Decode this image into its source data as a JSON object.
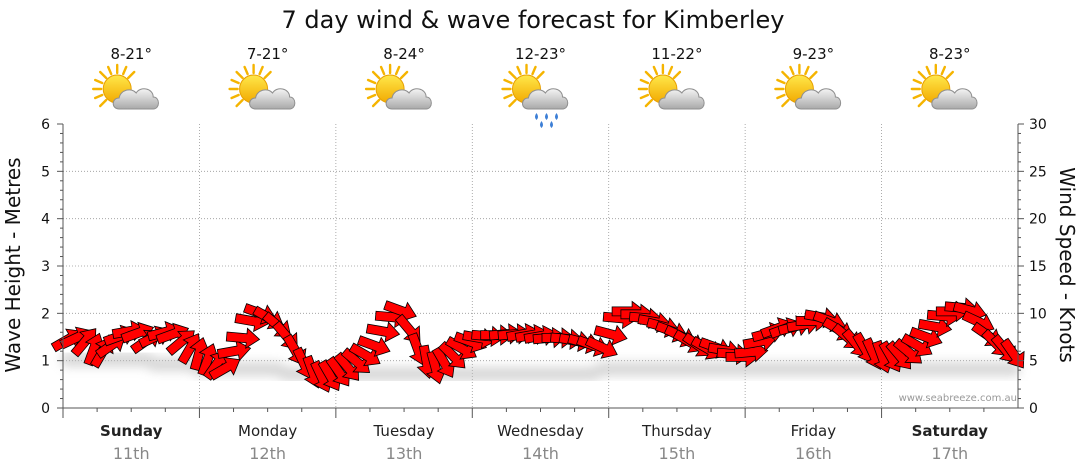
{
  "chart_data": {
    "type": "line",
    "title": "7 day wind & wave forecast for Kimberley",
    "ylabel_left": "Wave Height - Metres",
    "ylabel_right": "Wind Speed - Knots",
    "ylim_left": [
      0,
      6
    ],
    "ylim_right": [
      0,
      30
    ],
    "yticks_left": [
      "0",
      "1",
      "2",
      "3",
      "4",
      "5",
      "6"
    ],
    "yticks_right": [
      "0",
      "5",
      "10",
      "15",
      "20",
      "25",
      "30"
    ],
    "credit": "www.seabreeze.com.au",
    "days": [
      {
        "name": "Sunday",
        "date": "11th",
        "temp": "8-21°",
        "icon": "sun-cloud-icon",
        "bold": true
      },
      {
        "name": "Monday",
        "date": "12th",
        "temp": "7-21°",
        "icon": "sun-cloud-icon",
        "bold": false
      },
      {
        "name": "Tuesday",
        "date": "13th",
        "temp": "8-24°",
        "icon": "sun-cloud-icon",
        "bold": false
      },
      {
        "name": "Wednesday",
        "date": "14th",
        "temp": "12-23°",
        "icon": "sun-cloud-rain-icon",
        "bold": false
      },
      {
        "name": "Thursday",
        "date": "15th",
        "temp": "11-22°",
        "icon": "sun-cloud-icon",
        "bold": false
      },
      {
        "name": "Friday",
        "date": "16th",
        "temp": "9-23°",
        "icon": "sun-cloud-icon",
        "bold": false
      },
      {
        "name": "Saturday",
        "date": "17th",
        "temp": "8-23°",
        "icon": "sun-cloud-icon",
        "bold": true
      }
    ],
    "series": [
      {
        "name": "Wind Speed (knots)",
        "color": "#ff0000",
        "values": [
          7.2,
          7.4,
          7.0,
          6.2,
          5.9,
          6.6,
          7.6,
          8.1,
          7.9,
          7.1,
          7.5,
          8.0,
          7.8,
          7.0,
          6.3,
          5.7,
          5.1,
          4.6,
          4.2,
          6.0,
          7.4,
          9.2,
          10.0,
          9.5,
          8.7,
          7.6,
          6.1,
          4.7,
          3.8,
          3.3,
          3.4,
          3.8,
          4.3,
          4.9,
          5.6,
          6.6,
          8.1,
          9.6,
          10.3,
          8.3,
          6.2,
          4.9,
          4.3,
          4.8,
          5.5,
          6.3,
          7.0,
          7.4,
          7.6,
          7.7,
          7.8,
          7.8,
          7.8,
          7.7,
          7.6,
          7.4,
          7.4,
          7.3,
          7.1,
          6.9,
          6.6,
          6.4,
          7.8,
          9.5,
          10.2,
          9.9,
          9.5,
          9.1,
          8.6,
          8.1,
          7.6,
          7.0,
          6.6,
          6.3,
          6.4,
          6.1,
          5.7,
          5.4,
          5.9,
          7.0,
          7.9,
          8.4,
          8.4,
          8.6,
          8.8,
          9.2,
          9.6,
          9.2,
          8.3,
          7.5,
          6.8,
          6.3,
          5.7,
          5.4,
          5.4,
          5.5,
          5.9,
          6.6,
          7.5,
          8.6,
          9.7,
          10.2,
          10.6,
          10.3,
          9.1,
          7.7,
          6.8,
          6.2,
          5.7
        ]
      },
      {
        "name": "Wave Height (m)",
        "color": "#bbbbbb",
        "values": [
          1.0,
          1.0,
          1.0,
          1.0,
          1.0,
          1.0,
          1.0,
          1.0,
          1.0,
          1.0,
          0.9,
          0.9,
          0.9,
          0.9,
          0.9,
          0.8,
          0.8,
          0.8,
          0.8,
          0.8,
          0.8,
          0.8,
          0.8,
          0.8,
          0.8,
          0.7,
          0.7,
          0.7,
          0.7,
          0.7,
          0.7,
          0.7,
          0.7,
          0.7,
          0.7,
          0.7,
          0.7,
          0.7,
          0.7,
          0.7,
          0.7,
          0.7,
          0.7,
          0.7,
          0.7,
          0.7,
          0.7,
          0.7,
          0.7,
          0.7,
          0.7,
          0.7,
          0.7,
          0.7,
          0.7,
          0.7,
          0.7,
          0.7,
          0.7,
          0.7,
          0.7,
          0.8,
          0.8,
          0.8,
          0.8,
          0.8,
          0.8,
          0.8,
          0.8,
          0.8,
          0.8,
          0.8,
          0.8,
          0.8,
          0.8,
          0.8,
          0.8,
          0.8,
          0.8,
          0.8,
          0.8,
          0.8,
          0.8,
          0.8,
          0.8,
          0.8,
          0.8,
          0.8,
          0.8,
          0.8,
          0.8,
          0.8,
          0.8,
          0.8,
          0.8,
          0.8,
          0.8,
          0.8,
          0.8,
          0.8,
          0.8,
          0.8,
          0.8,
          0.8,
          0.8,
          0.8,
          0.8,
          0.8,
          0.8
        ]
      }
    ],
    "directions": [
      60,
      65,
      40,
      20,
      30,
      55,
      70,
      80,
      70,
      55,
      65,
      75,
      70,
      50,
      30,
      15,
      20,
      35,
      60,
      80,
      95,
      100,
      110,
      120,
      130,
      140,
      150,
      155,
      160,
      155,
      150,
      145,
      140,
      130,
      120,
      110,
      100,
      95,
      110,
      140,
      160,
      170,
      165,
      150,
      135,
      120,
      110,
      100,
      95,
      90,
      85,
      85,
      80,
      80,
      80,
      85,
      90,
      95,
      100,
      105,
      110,
      115,
      105,
      95,
      90,
      90,
      95,
      100,
      105,
      110,
      115,
      120,
      125,
      120,
      110,
      100,
      95,
      90,
      85,
      80,
      75,
      70,
      70,
      75,
      80,
      90,
      100,
      110,
      120,
      130,
      140,
      150,
      155,
      160,
      150,
      140,
      130,
      120,
      110,
      100,
      95,
      90,
      95,
      105,
      115,
      125,
      135,
      140,
      145
    ]
  }
}
